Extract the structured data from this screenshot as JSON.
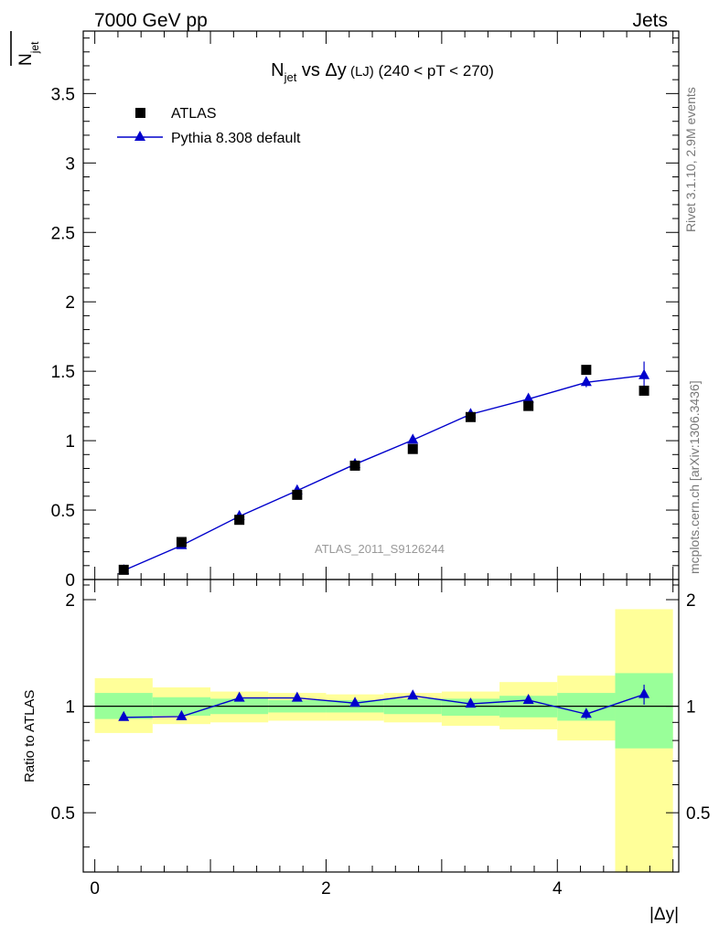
{
  "header": {
    "energy": "7000 GeV pp",
    "process": "Jets"
  },
  "side_labels": {
    "rivet": "Rivet 3.1.10,  2.9M events",
    "mcplots": "mcplots.cern.ch [arXiv:1306.3436]"
  },
  "watermark": "ATLAS_2011_S9126244",
  "chart_data": [
    {
      "type": "scatter",
      "title": {
        "main": "N",
        "sub": "jet",
        "rest": " vs Δy",
        "small": " (LJ)",
        "range": " (240 < pT < 270)"
      },
      "ylabel": {
        "main": "N",
        "sub": "jet"
      },
      "xlabel": "|Δy|",
      "xlim": [
        -0.1,
        5.05
      ],
      "ylim": [
        0,
        3.95
      ],
      "yticks": [
        0.5,
        1,
        1.5,
        2,
        2.5,
        3,
        3.5
      ],
      "ytick_labels": [
        "0.5",
        "1",
        "1.5",
        "2",
        "2.5",
        "3",
        "3.5"
      ],
      "ytick_partial_label": "0",
      "x_bin_edges": [
        0,
        0.5,
        1,
        1.5,
        2,
        2.5,
        3,
        3.5,
        4,
        4.5,
        5
      ],
      "x": [
        0.25,
        0.75,
        1.25,
        1.75,
        2.25,
        2.75,
        3.25,
        3.75,
        4.25,
        4.75
      ],
      "legend_position": "top-left",
      "series": [
        {
          "name": "ATLAS",
          "color": "#000000",
          "marker": "square",
          "values": [
            0.07,
            0.27,
            0.43,
            0.61,
            0.82,
            0.94,
            1.17,
            1.25,
            1.51,
            1.36
          ]
        },
        {
          "name": "Pythia 8.308 default",
          "color": "#0000cc",
          "marker": "triangle",
          "values": [
            0.065,
            0.245,
            0.455,
            0.64,
            0.83,
            1.005,
            1.19,
            1.3,
            1.42,
            1.47
          ],
          "errors": [
            0.005,
            0.01,
            0.01,
            0.01,
            0.01,
            0.015,
            0.015,
            0.025,
            0.035,
            0.1
          ]
        }
      ]
    },
    {
      "type": "line",
      "ylabel": "Ratio to ATLAS",
      "xlabel": "|Δy|",
      "xlim": [
        -0.1,
        5.05
      ],
      "ylim": [
        0.34,
        2.28
      ],
      "yticks": [
        0.5,
        1,
        2
      ],
      "ytick_labels": [
        "0.5",
        "1",
        "2"
      ],
      "xticks": [
        0,
        2,
        4
      ],
      "xtick_labels": [
        "0",
        "2",
        "4"
      ],
      "reference_line": 1,
      "x_bin_edges": [
        0,
        0.5,
        1,
        1.5,
        2,
        2.5,
        3,
        3.5,
        4,
        4.5,
        5
      ],
      "x": [
        0.25,
        0.75,
        1.25,
        1.75,
        2.25,
        2.75,
        3.25,
        3.75,
        4.25,
        4.75
      ],
      "bands": {
        "outer_color": "#ffff99",
        "inner_color": "#99ff99",
        "outer_lo": [
          0.84,
          0.89,
          0.9,
          0.91,
          0.91,
          0.9,
          0.88,
          0.86,
          0.8,
          0.34
        ],
        "outer_hi": [
          1.2,
          1.13,
          1.1,
          1.09,
          1.08,
          1.09,
          1.1,
          1.17,
          1.22,
          1.88
        ],
        "inner_lo": [
          0.92,
          0.94,
          0.95,
          0.96,
          0.96,
          0.95,
          0.94,
          0.93,
          0.91,
          0.76
        ],
        "inner_hi": [
          1.09,
          1.06,
          1.05,
          1.04,
          1.04,
          1.05,
          1.05,
          1.07,
          1.09,
          1.24
        ]
      },
      "series": [
        {
          "name": "Pythia 8.308 default",
          "color": "#0000cc",
          "marker": "triangle",
          "values": [
            0.93,
            0.935,
            1.055,
            1.055,
            1.02,
            1.07,
            1.015,
            1.04,
            0.95,
            1.08
          ],
          "errors": [
            0.005,
            0.005,
            0.01,
            0.01,
            0.01,
            0.015,
            0.015,
            0.02,
            0.03,
            0.07
          ]
        }
      ]
    }
  ]
}
